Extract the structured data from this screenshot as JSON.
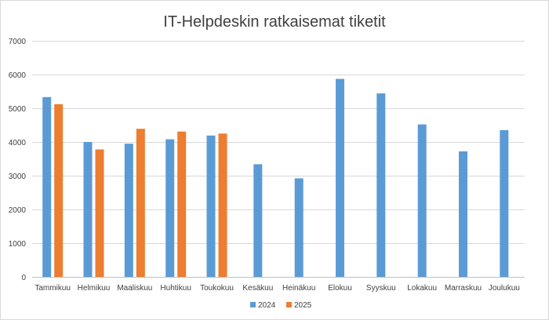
{
  "chart_data": {
    "type": "bar",
    "title": "IT-Helpdeskin ratkaisemat tiketit",
    "xlabel": "",
    "ylabel": "",
    "ylim": [
      0,
      7000
    ],
    "yticks": [
      0,
      1000,
      2000,
      3000,
      4000,
      5000,
      6000,
      7000
    ],
    "grid": true,
    "legend_position": "bottom",
    "categories": [
      "Tammikuu",
      "Helmikuu",
      "Maaliskuu",
      "Huhtikuu",
      "Toukokuu",
      "Kesäkuu",
      "Heinäkuu",
      "Elokuu",
      "Syyskuu",
      "Lokakuu",
      "Marraskuu",
      "Joulukuu"
    ],
    "series": [
      {
        "name": "2024",
        "color": "#5b9bd5",
        "values": [
          5330,
          4000,
          3950,
          4080,
          4190,
          3340,
          2920,
          5870,
          5440,
          4520,
          3720,
          4350
        ]
      },
      {
        "name": "2025",
        "color": "#ed7d31",
        "values": [
          5120,
          3780,
          4390,
          4310,
          4250,
          null,
          null,
          null,
          null,
          null,
          null,
          null
        ]
      }
    ]
  }
}
